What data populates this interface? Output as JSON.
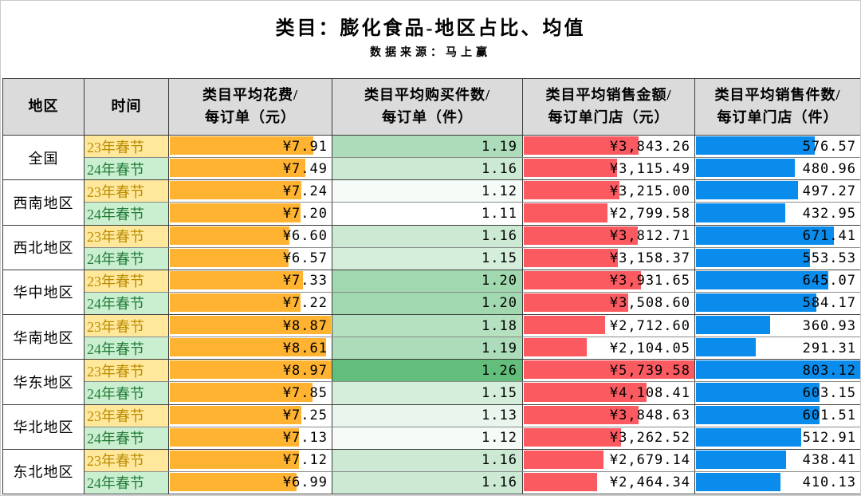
{
  "title": "类目：膨化食品-地区占比、均值",
  "subtitle": "数据来源：马上赢",
  "header": {
    "cols": [
      "地区",
      "时间",
      "类目平均花费/\n每订单（元）",
      "类目平均购买件数/\n每订单（件）",
      "类目平均销售金额/\n每订单门店（元）",
      "类目平均销售件数/\n每订单门店（件）"
    ]
  },
  "colors": {
    "header_bg": "#dbdbdb",
    "spend_bar": "#FFB331",
    "sales_bar": "#FB5A61",
    "units_bar": "#0A8CEC",
    "items_scale_min_color": "#FFFFFF",
    "items_scale_max_color": "#63BE7B",
    "time_23_bg": "#FFE89C",
    "time_23_text": "#BC8C00",
    "time_24_bg": "#C9EFD0",
    "time_24_text": "#237B38"
  },
  "chart_data": {
    "type": "table",
    "title": "类目：膨化食品-地区占比、均值",
    "subtitle": "数据来源：马上赢",
    "columns": [
      "地区",
      "时间",
      "类目平均花费/每订单（元）",
      "类目平均购买件数/每订单（件）",
      "类目平均销售金额/每订单门店（元）",
      "类目平均销售件数/每订单门店（件）"
    ],
    "bar_scaling": "bar width = value / column max",
    "items_scale": {
      "min": 1.11,
      "max": 1.26
    },
    "groups": [
      {
        "region": "全国",
        "rows": [
          {
            "time": "23年春节",
            "spend": 7.91,
            "spend_label": "¥7.91",
            "items": 1.19,
            "items_label": "1.19",
            "sales": 3843.26,
            "sales_label": "¥3,843.26",
            "units": 576.57,
            "units_label": "576.57"
          },
          {
            "time": "24年春节",
            "spend": 7.49,
            "spend_label": "¥7.49",
            "items": 1.16,
            "items_label": "1.16",
            "sales": 3115.49,
            "sales_label": "¥3,115.49",
            "units": 480.96,
            "units_label": "480.96"
          }
        ]
      },
      {
        "region": "西南地区",
        "rows": [
          {
            "time": "23年春节",
            "spend": 7.24,
            "spend_label": "¥7.24",
            "items": 1.12,
            "items_label": "1.12",
            "sales": 3215.0,
            "sales_label": "¥3,215.00",
            "units": 497.27,
            "units_label": "497.27"
          },
          {
            "time": "24年春节",
            "spend": 7.2,
            "spend_label": "¥7.20",
            "items": 1.11,
            "items_label": "1.11",
            "sales": 2799.58,
            "sales_label": "¥2,799.58",
            "units": 432.95,
            "units_label": "432.95"
          }
        ]
      },
      {
        "region": "西北地区",
        "rows": [
          {
            "time": "23年春节",
            "spend": 6.6,
            "spend_label": "¥6.60",
            "items": 1.16,
            "items_label": "1.16",
            "sales": 3812.71,
            "sales_label": "¥3,812.71",
            "units": 671.41,
            "units_label": "671.41"
          },
          {
            "time": "24年春节",
            "spend": 6.57,
            "spend_label": "¥6.57",
            "items": 1.15,
            "items_label": "1.15",
            "sales": 3158.37,
            "sales_label": "¥3,158.37",
            "units": 553.53,
            "units_label": "553.53"
          }
        ]
      },
      {
        "region": "华中地区",
        "rows": [
          {
            "time": "23年春节",
            "spend": 7.33,
            "spend_label": "¥7.33",
            "items": 1.2,
            "items_label": "1.20",
            "sales": 3931.65,
            "sales_label": "¥3,931.65",
            "units": 645.07,
            "units_label": "645.07"
          },
          {
            "time": "24年春节",
            "spend": 7.22,
            "spend_label": "¥7.22",
            "items": 1.2,
            "items_label": "1.20",
            "sales": 3508.6,
            "sales_label": "¥3,508.60",
            "units": 584.17,
            "units_label": "584.17"
          }
        ]
      },
      {
        "region": "华南地区",
        "rows": [
          {
            "time": "23年春节",
            "spend": 8.87,
            "spend_label": "¥8.87",
            "items": 1.18,
            "items_label": "1.18",
            "sales": 2712.6,
            "sales_label": "¥2,712.60",
            "units": 360.93,
            "units_label": "360.93"
          },
          {
            "time": "24年春节",
            "spend": 8.61,
            "spend_label": "¥8.61",
            "items": 1.19,
            "items_label": "1.19",
            "sales": 2104.05,
            "sales_label": "¥2,104.05",
            "units": 291.31,
            "units_label": "291.31"
          }
        ]
      },
      {
        "region": "华东地区",
        "rows": [
          {
            "time": "23年春节",
            "spend": 8.97,
            "spend_label": "¥8.97",
            "items": 1.26,
            "items_label": "1.26",
            "sales": 5739.58,
            "sales_label": "¥5,739.58",
            "units": 803.12,
            "units_label": "803.12"
          },
          {
            "time": "24年春节",
            "spend": 7.85,
            "spend_label": "¥7.85",
            "items": 1.15,
            "items_label": "1.15",
            "sales": 4108.41,
            "sales_label": "¥4,108.41",
            "units": 603.15,
            "units_label": "603.15"
          }
        ]
      },
      {
        "region": "华北地区",
        "rows": [
          {
            "time": "23年春节",
            "spend": 7.25,
            "spend_label": "¥7.25",
            "items": 1.13,
            "items_label": "1.13",
            "sales": 3848.63,
            "sales_label": "¥3,848.63",
            "units": 601.51,
            "units_label": "601.51"
          },
          {
            "time": "24年春节",
            "spend": 7.13,
            "spend_label": "¥7.13",
            "items": 1.12,
            "items_label": "1.12",
            "sales": 3262.52,
            "sales_label": "¥3,262.52",
            "units": 512.91,
            "units_label": "512.91"
          }
        ]
      },
      {
        "region": "东北地区",
        "rows": [
          {
            "time": "23年春节",
            "spend": 7.12,
            "spend_label": "¥7.12",
            "items": 1.16,
            "items_label": "1.16",
            "sales": 2679.14,
            "sales_label": "¥2,679.14",
            "units": 438.41,
            "units_label": "438.41"
          },
          {
            "time": "24年春节",
            "spend": 6.99,
            "spend_label": "¥6.99",
            "items": 1.16,
            "items_label": "1.16",
            "sales": 2464.34,
            "sales_label": "¥2,464.34",
            "units": 410.13,
            "units_label": "410.13"
          }
        ]
      }
    ]
  }
}
